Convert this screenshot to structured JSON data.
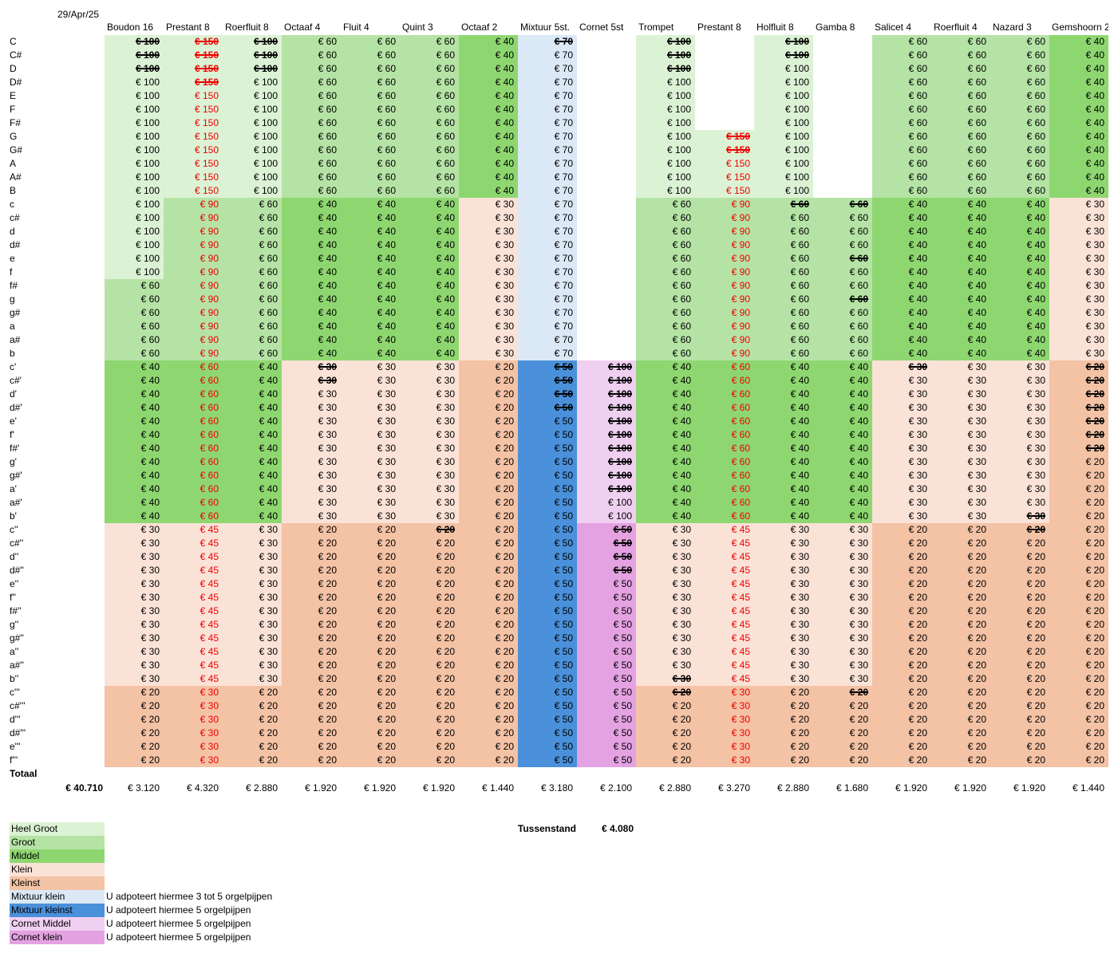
{
  "date": "29/Apr/25",
  "registers": [
    "Boudon 16",
    "Prestant 8",
    "Roerfluit 8",
    "Octaaf 4",
    "Fluit 4",
    "Quint 3",
    "Octaaf 2",
    "Mixtuur 5st.",
    "Cornet 5st",
    "Trompet",
    "Prestant 8",
    "Holfluit 8",
    "Gamba 8",
    "Salicet 4",
    "Roerfluit 4",
    "Nazard 3",
    "Gemshoorn 2"
  ],
  "notes": [
    "C",
    "C#",
    "D",
    "D#",
    "E",
    "F",
    "F#",
    "G",
    "G#",
    "A",
    "A#",
    "B",
    "c",
    "c#",
    "d",
    "d#",
    "e",
    "f",
    "f#",
    "g",
    "g#",
    "a",
    "a#",
    "b",
    "c'",
    "c#'",
    "d'",
    "d#'",
    "e'",
    "f'",
    "f#'",
    "g'",
    "g#'",
    "a'",
    "a#'",
    "b'",
    "c''",
    "c#''",
    "d''",
    "d#''",
    "e''",
    "f''",
    "f#''",
    "g''",
    "g#''",
    "a''",
    "a#''",
    "b''",
    "c'''",
    "c#'''",
    "d'''",
    "d#'''",
    "e'''",
    "f'''"
  ],
  "colors": {
    "HG": "#dcf2d5",
    "G": "#b5e3a5",
    "M": "#8ed770",
    "K": "#fbe2d7",
    "KS": "#f4c2a5",
    "MK": "#dbe8f6",
    "MKS": "#4a90da",
    "CM": "#f0d0f1",
    "CK": "#e4a2e2",
    "W": "#ffffff"
  },
  "grid_rows": [
    "HG:€100:S|HG:€150:RS|HG:€100:S|G:€60|G:€60|G:€60|M:€40|MK:€70:S|W:|HG:€100:S|W:|HG:€100:S|W:|G:€60|G:€60|G:€60|M:€40",
    "HG:€100:S|HG:€150:RS|HG:€100:S|G:€60|G:€60|G:€60|M:€40|MK:€70|W:|HG:€100:S|W:|HG:€100:S|W:|G:€60|G:€60|G:€60|M:€40",
    "HG:€100:S|HG:€150:RS|HG:€100:S|G:€60|G:€60|G:€60|M:€40|MK:€70|W:|HG:€100:S|W:|HG:€100|W:|G:€60|G:€60|G:€60|M:€40",
    "HG:€100|HG:€150:RS|HG:€100|G:€60|G:€60|G:€60|M:€40|MK:€70|W:|HG:€100|W:|HG:€100|W:|G:€60|G:€60|G:€60|M:€40",
    "HG:€100|HG:€150:R|HG:€100|G:€60|G:€60|G:€60|M:€40|MK:€70|W:|HG:€100|W:|HG:€100|W:|G:€60|G:€60|G:€60|M:€40",
    "HG:€100|HG:€150:R|HG:€100|G:€60|G:€60|G:€60|M:€40|MK:€70|W:|HG:€100|W:|HG:€100|W:|G:€60|G:€60|G:€60|M:€40",
    "HG:€100|HG:€150:R|HG:€100|G:€60|G:€60|G:€60|M:€40|MK:€70|W:|HG:€100|W:|HG:€100|W:|G:€60|G:€60|G:€60|M:€40",
    "HG:€100|HG:€150:R|HG:€100|G:€60|G:€60|G:€60|M:€40|MK:€70|W:|HG:€100|HG:€150:RS|HG:€100|W:|G:€60|G:€60|G:€60|M:€40",
    "HG:€100|HG:€150:R|HG:€100|G:€60|G:€60|G:€60|M:€40|MK:€70|W:|HG:€100|HG:€150:RS|HG:€100|W:|G:€60|G:€60|G:€60|M:€40",
    "HG:€100|HG:€150:R|HG:€100|G:€60|G:€60|G:€60|M:€40|MK:€70|W:|HG:€100|HG:€150:R|HG:€100|W:|G:€60|G:€60|G:€60|M:€40",
    "HG:€100|HG:€150:R|HG:€100|G:€60|G:€60|G:€60|M:€40|MK:€70|W:|HG:€100|HG:€150:R|HG:€100|W:|G:€60|G:€60|G:€60|M:€40",
    "HG:€100|HG:€150:R|HG:€100|G:€60|G:€60|G:€60|M:€40|MK:€70|W:|HG:€100|HG:€150:R|HG:€100|W:|G:€60|G:€60|G:€60|M:€40",
    "HG:€100|G:€90:R|G:€60|M:€40|M:€40|M:€40|K:€30|MK:€70|W:|G:€60|G:€90:R|G:€60:S|G:€60:S|M:€40|M:€40|M:€40|K:€30",
    "HG:€100|G:€90:R|G:€60|M:€40|M:€40|M:€40|K:€30|MK:€70|W:|G:€60|G:€90:R|G:€60|G:€60|M:€40|M:€40|M:€40|K:€30",
    "HG:€100|G:€90:R|G:€60|M:€40|M:€40|M:€40|K:€30|MK:€70|W:|G:€60|G:€90:R|G:€60|G:€60|M:€40|M:€40|M:€40|K:€30",
    "HG:€100|G:€90:R|G:€60|M:€40|M:€40|M:€40|K:€30|MK:€70|W:|G:€60|G:€90:R|G:€60|G:€60|M:€40|M:€40|M:€40|K:€30",
    "HG:€100|G:€90:R|G:€60|M:€40|M:€40|M:€40|K:€30|MK:€70|W:|G:€60|G:€90:R|G:€60|G:€60:S|M:€40|M:€40|M:€40|K:€30",
    "HG:€100|G:€90:R|G:€60|M:€40|M:€40|M:€40|K:€30|MK:€70|W:|G:€60|G:€90:R|G:€60|G:€60|M:€40|M:€40|M:€40|K:€30",
    "G:€60|G:€90:R|G:€60|M:€40|M:€40|M:€40|K:€30|MK:€70|W:|G:€60|G:€90:R|G:€60|G:€60|M:€40|M:€40|M:€40|K:€30",
    "G:€60|G:€90:R|G:€60|M:€40|M:€40|M:€40|K:€30|MK:€70|W:|G:€60|G:€90:R|G:€60|G:€60:S|M:€40|M:€40|M:€40|K:€30",
    "G:€60|G:€90:R|G:€60|M:€40|M:€40|M:€40|K:€30|MK:€70|W:|G:€60|G:€90:R|G:€60|G:€60|M:€40|M:€40|M:€40|K:€30",
    "G:€60|G:€90:R|G:€60|M:€40|M:€40|M:€40|K:€30|MK:€70|W:|G:€60|G:€90:R|G:€60|G:€60|M:€40|M:€40|M:€40|K:€30",
    "G:€60|G:€90:R|G:€60|M:€40|M:€40|M:€40|K:€30|MK:€70|W:|G:€60|G:€90:R|G:€60|G:€60|M:€40|M:€40|M:€40|K:€30",
    "G:€60|G:€90:R|G:€60|M:€40|M:€40|M:€40|K:€30|MK:€70|W:|G:€60|G:€90:R|G:€60|G:€60|M:€40|M:€40|M:€40|K:€30",
    "M:€40|M:€60:R|M:€40|K:€30:S|K:€30|K:€30|KS:€20|MKS:€50:S|CM:€100:S|M:€40|M:€60:R|M:€40|M:€40|K:€30:S|K:€30|K:€30|KS:€20:S",
    "M:€40|M:€60:R|M:€40|K:€30:S|K:€30|K:€30|KS:€20|MKS:€50:S|CM:€100:S|M:€40|M:€60:R|M:€40|M:€40|K:€30|K:€30|K:€30|KS:€20:S",
    "M:€40|M:€60:R|M:€40|K:€30|K:€30|K:€30|KS:€20|MKS:€50:S|CM:€100:S|M:€40|M:€60:R|M:€40|M:€40|K:€30|K:€30|K:€30|KS:€20:S",
    "M:€40|M:€60:R|M:€40|K:€30|K:€30|K:€30|KS:€20|MKS:€50:S|CM:€100:S|M:€40|M:€60:R|M:€40|M:€40|K:€30|K:€30|K:€30|KS:€20:S",
    "M:€40|M:€60:R|M:€40|K:€30|K:€30|K:€30|KS:€20|MKS:€50|CM:€100:S|M:€40|M:€60:R|M:€40|M:€40|K:€30|K:€30|K:€30|KS:€20:S",
    "M:€40|M:€60:R|M:€40|K:€30|K:€30|K:€30|KS:€20|MKS:€50|CM:€100:S|M:€40|M:€60:R|M:€40|M:€40|K:€30|K:€30|K:€30|KS:€20:S",
    "M:€40|M:€60:R|M:€40|K:€30|K:€30|K:€30|KS:€20|MKS:€50|CM:€100:S|M:€40|M:€60:R|M:€40|M:€40|K:€30|K:€30|K:€30|KS:€20:S",
    "M:€40|M:€60:R|M:€40|K:€30|K:€30|K:€30|KS:€20|MKS:€50|CM:€100:S|M:€40|M:€60:R|M:€40|M:€40|K:€30|K:€30|K:€30|KS:€20",
    "M:€40|M:€60:R|M:€40|K:€30|K:€30|K:€30|KS:€20|MKS:€50|CM:€100:S|M:€40|M:€60:R|M:€40|M:€40|K:€30|K:€30|K:€30|KS:€20",
    "M:€40|M:€60:R|M:€40|K:€30|K:€30|K:€30|KS:€20|MKS:€50|CM:€100:S|M:€40|M:€60:R|M:€40|M:€40|K:€30|K:€30|K:€30|KS:€20",
    "M:€40|M:€60:R|M:€40|K:€30|K:€30|K:€30|KS:€20|MKS:€50|CM:€100|M:€40|M:€60:R|M:€40|M:€40|K:€30|K:€30|K:€30|KS:€20",
    "M:€40|M:€60:R|M:€40|K:€30|K:€30|K:€30|KS:€20|MKS:€50|CM:€100|M:€40|M:€60:R|M:€40|M:€40|K:€30|K:€30|K:€30:S|KS:€20",
    "K:€30|K:€45:R|K:€30|KS:€20|KS:€20|KS:€20:S|KS:€20|MKS:€50|CK:€50:S|K:€30|K:€45:R|K:€30|K:€30|KS:€20|KS:€20|KS:€20:S|KS:€20",
    "K:€30|K:€45:R|K:€30|KS:€20|KS:€20|KS:€20|KS:€20|MKS:€50|CK:€50:S|K:€30|K:€45:R|K:€30|K:€30|KS:€20|KS:€20|KS:€20|KS:€20",
    "K:€30|K:€45:R|K:€30|KS:€20|KS:€20|KS:€20|KS:€20|MKS:€50|CK:€50:S|K:€30|K:€45:R|K:€30|K:€30|KS:€20|KS:€20|KS:€20|KS:€20",
    "K:€30|K:€45:R|K:€30|KS:€20|KS:€20|KS:€20|KS:€20|MKS:€50|CK:€50:S|K:€30|K:€45:R|K:€30|K:€30|KS:€20|KS:€20|KS:€20|KS:€20",
    "K:€30|K:€45:R|K:€30|KS:€20|KS:€20|KS:€20|KS:€20|MKS:€50|CK:€50|K:€30|K:€45:R|K:€30|K:€30|KS:€20|KS:€20|KS:€20|KS:€20",
    "K:€30|K:€45:R|K:€30|KS:€20|KS:€20|KS:€20|KS:€20|MKS:€50|CK:€50|K:€30|K:€45:R|K:€30|K:€30|KS:€20|KS:€20|KS:€20|KS:€20",
    "K:€30|K:€45:R|K:€30|KS:€20|KS:€20|KS:€20|KS:€20|MKS:€50|CK:€50|K:€30|K:€45:R|K:€30|K:€30|KS:€20|KS:€20|KS:€20|KS:€20",
    "K:€30|K:€45:R|K:€30|KS:€20|KS:€20|KS:€20|KS:€20|MKS:€50|CK:€50|K:€30|K:€45:R|K:€30|K:€30|KS:€20|KS:€20|KS:€20|KS:€20",
    "K:€30|K:€45:R|K:€30|KS:€20|KS:€20|KS:€20|KS:€20|MKS:€50|CK:€50|K:€30|K:€45:R|K:€30|K:€30|KS:€20|KS:€20|KS:€20|KS:€20",
    "K:€30|K:€45:R|K:€30|KS:€20|KS:€20|KS:€20|KS:€20|MKS:€50|CK:€50|K:€30|K:€45:R|K:€30|K:€30|KS:€20|KS:€20|KS:€20|KS:€20",
    "K:€30|K:€45:R|K:€30|KS:€20|KS:€20|KS:€20|KS:€20|MKS:€50|CK:€50|K:€30|K:€45:R|K:€30|K:€30|KS:€20|KS:€20|KS:€20|KS:€20",
    "K:€30|K:€45:R|K:€30|KS:€20|KS:€20|KS:€20|KS:€20|MKS:€50|CK:€50|K:€30:S|K:€45:R|K:€30|K:€30|KS:€20|KS:€20|KS:€20|KS:€20",
    "KS:€20|KS:€30:R|KS:€20|KS:€20|KS:€20|KS:€20|KS:€20|MKS:€50|CK:€50|KS:€20:S|KS:€30:R|KS:€20|KS:€20:S|KS:€20|KS:€20|KS:€20|KS:€20",
    "KS:€20|KS:€30:R|KS:€20|KS:€20|KS:€20|KS:€20|KS:€20|MKS:€50|CK:€50|KS:€20|KS:€30:R|KS:€20|KS:€20|KS:€20|KS:€20|KS:€20|KS:€20",
    "KS:€20|KS:€30:R|KS:€20|KS:€20|KS:€20|KS:€20|KS:€20|MKS:€50|CK:€50|KS:€20|KS:€30:R|KS:€20|KS:€20|KS:€20|KS:€20|KS:€20|KS:€20",
    "KS:€20|KS:€30:R|KS:€20|KS:€20|KS:€20|KS:€20|KS:€20|MKS:€50|CK:€50|KS:€20|KS:€30:R|KS:€20|KS:€20|KS:€20|KS:€20|KS:€20|KS:€20",
    "KS:€20|KS:€30:R|KS:€20|KS:€20|KS:€20|KS:€20|KS:€20|MKS:€50|CK:€50|KS:€20|KS:€30:R|KS:€20|KS:€20|KS:€20|KS:€20|KS:€20|KS:€20",
    "KS:€20|KS:€30:R|KS:€20|KS:€20|KS:€20|KS:€20|KS:€20|MKS:€50|CK:€50|KS:€20|KS:€30:R|KS:€20|KS:€20|KS:€20|KS:€20|KS:€20|KS:€20"
  ],
  "totaal_label": "Totaal",
  "grand_total": "€ 40.710",
  "column_totals": [
    "€ 3.120",
    "€ 4.320",
    "€ 2.880",
    "€ 1.920",
    "€ 1.920",
    "€ 1.920",
    "€ 1.440",
    "€ 3.180",
    "€ 2.100",
    "€ 2.880",
    "€ 3.270",
    "€ 2.880",
    "€ 1.680",
    "€ 1.920",
    "€ 1.920",
    "€ 1.920",
    "€ 1.440"
  ],
  "tussenstand": {
    "label": "Tussenstand",
    "value": "€ 4.080"
  },
  "legend": [
    {
      "key": "HG",
      "label": "Heel Groot",
      "note": ""
    },
    {
      "key": "G",
      "label": "Groot",
      "note": ""
    },
    {
      "key": "M",
      "label": "Middel",
      "note": ""
    },
    {
      "key": "K",
      "label": "Klein",
      "note": ""
    },
    {
      "key": "KS",
      "label": "Kleinst",
      "note": ""
    },
    {
      "key": "MK",
      "label": "Mixtuur klein",
      "note": "U adpoteert hiermee 3 tot 5 orgelpijpen"
    },
    {
      "key": "MKS",
      "label": "Mixtuur kleinst",
      "note": "U adpoteert hiermee 5 orgelpijpen"
    },
    {
      "key": "CM",
      "label": "Cornet Middel",
      "note": "U adpoteert hiermee 5 orgelpijpen"
    },
    {
      "key": "CK",
      "label": "Cornet klein",
      "note": "U adpoteert hiermee 5 orgelpijpen"
    }
  ]
}
